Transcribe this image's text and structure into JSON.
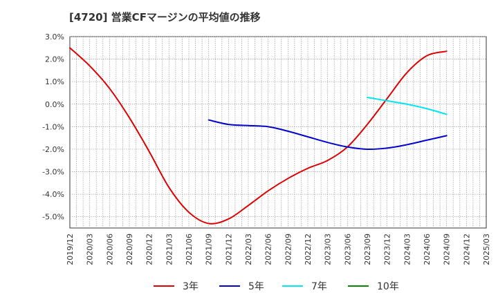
{
  "chart_data": {
    "type": "line",
    "title": "[4720]  営業CFマージンの平均値の推移",
    "xlabel": "",
    "ylabel": "",
    "ylim": [
      -5.5,
      3.0
    ],
    "yticks": [
      3.0,
      2.0,
      1.0,
      0.0,
      -1.0,
      -2.0,
      -3.0,
      -4.0,
      -5.0
    ],
    "ytick_labels": [
      "3.0%",
      "2.0%",
      "1.0%",
      "0.0%",
      "-1.0%",
      "-2.0%",
      "-3.0%",
      "-4.0%",
      "-5.0%"
    ],
    "x_tick_labels": [
      "2019/12",
      "2020/03",
      "2020/06",
      "2020/09",
      "2020/12",
      "2021/03",
      "2021/06",
      "2021/09",
      "2021/12",
      "2022/03",
      "2022/06",
      "2022/09",
      "2022/12",
      "2023/03",
      "2023/06",
      "2023/09",
      "2023/12",
      "2024/03",
      "2024/06",
      "2024/09",
      "2024/12",
      "2025/03"
    ],
    "grid": true,
    "legend_position": "bottom",
    "series": [
      {
        "name": "3年",
        "color": "#dd0000",
        "x": [
          "2019/12",
          "2020/03",
          "2020/06",
          "2020/09",
          "2020/12",
          "2021/03",
          "2021/06",
          "2021/09",
          "2021/12",
          "2022/03",
          "2022/06",
          "2022/09",
          "2022/12",
          "2023/03",
          "2023/06",
          "2023/09",
          "2023/12",
          "2024/03",
          "2024/06",
          "2024/09"
        ],
        "values": [
          2.5,
          1.7,
          0.7,
          -0.6,
          -2.1,
          -3.7,
          -4.8,
          -5.3,
          -5.1,
          -4.5,
          -3.85,
          -3.3,
          -2.85,
          -2.5,
          -1.9,
          -0.9,
          0.25,
          1.4,
          2.15,
          2.35
        ]
      },
      {
        "name": "5年",
        "color": "#0000cc",
        "x": [
          "2021/09",
          "2021/12",
          "2022/03",
          "2022/06",
          "2022/09",
          "2022/12",
          "2023/03",
          "2023/06",
          "2023/09",
          "2023/12",
          "2024/03",
          "2024/06",
          "2024/09"
        ],
        "values": [
          -0.7,
          -0.9,
          -0.95,
          -1.0,
          -1.2,
          -1.45,
          -1.7,
          -1.9,
          -2.0,
          -1.95,
          -1.8,
          -1.6,
          -1.4
        ]
      },
      {
        "name": "7年",
        "color": "#00e5ee",
        "x": [
          "2023/09",
          "2023/12",
          "2024/03",
          "2024/06",
          "2024/09"
        ],
        "values": [
          0.3,
          0.15,
          0.0,
          -0.2,
          -0.45
        ]
      },
      {
        "name": "10年",
        "color": "#008800",
        "x": [],
        "values": []
      }
    ]
  }
}
